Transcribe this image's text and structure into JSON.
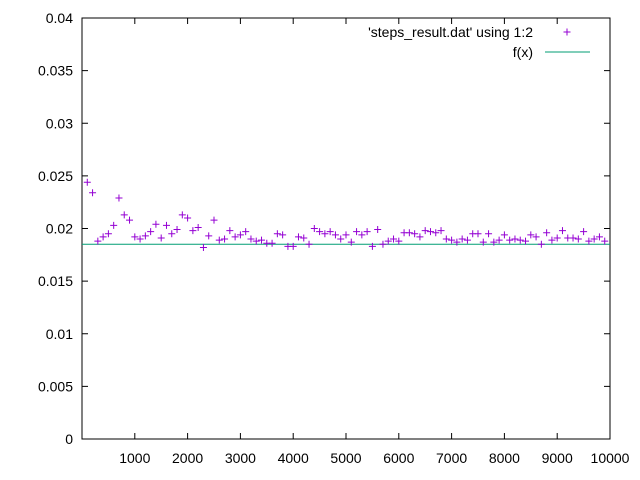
{
  "chart_data": {
    "type": "scatter",
    "title": "",
    "xlabel": "",
    "ylabel": "",
    "xlim": [
      0,
      10000
    ],
    "ylim": [
      0,
      0.04
    ],
    "grid": false,
    "legend_position": "top-right",
    "x_ticks": [
      {
        "value": 1000,
        "label": "1000"
      },
      {
        "value": 2000,
        "label": "2000"
      },
      {
        "value": 3000,
        "label": "3000"
      },
      {
        "value": 4000,
        "label": "4000"
      },
      {
        "value": 5000,
        "label": "5000"
      },
      {
        "value": 6000,
        "label": "6000"
      },
      {
        "value": 7000,
        "label": "7000"
      },
      {
        "value": 8000,
        "label": "8000"
      },
      {
        "value": 9000,
        "label": "9000"
      },
      {
        "value": 10000,
        "label": "10000"
      }
    ],
    "y_ticks": [
      {
        "value": 0,
        "label": "0"
      },
      {
        "value": 0.005,
        "label": "0.005"
      },
      {
        "value": 0.01,
        "label": "0.01"
      },
      {
        "value": 0.015,
        "label": "0.015"
      },
      {
        "value": 0.02,
        "label": "0.02"
      },
      {
        "value": 0.025,
        "label": "0.025"
      },
      {
        "value": 0.03,
        "label": "0.03"
      },
      {
        "value": 0.035,
        "label": "0.035"
      },
      {
        "value": 0.04,
        "label": "0.04"
      }
    ],
    "series": [
      {
        "name": "'steps_result.dat' using 1:2",
        "kind": "points",
        "marker": "plus",
        "color": "#9400d3",
        "x": [
          100,
          200,
          300,
          400,
          500,
          600,
          700,
          800,
          900,
          1000,
          1100,
          1200,
          1300,
          1400,
          1500,
          1600,
          1700,
          1800,
          1900,
          2000,
          2100,
          2200,
          2300,
          2400,
          2500,
          2600,
          2700,
          2800,
          2900,
          3000,
          3100,
          3200,
          3300,
          3400,
          3500,
          3600,
          3700,
          3800,
          3900,
          4000,
          4100,
          4200,
          4300,
          4400,
          4500,
          4600,
          4700,
          4800,
          4900,
          5000,
          5100,
          5200,
          5300,
          5400,
          5500,
          5600,
          5700,
          5800,
          5900,
          6000,
          6100,
          6200,
          6300,
          6400,
          6500,
          6600,
          6700,
          6800,
          6900,
          7000,
          7100,
          7200,
          7300,
          7400,
          7500,
          7600,
          7700,
          7800,
          7900,
          8000,
          8100,
          8200,
          8300,
          8400,
          8500,
          8600,
          8700,
          8800,
          8900,
          9000,
          9100,
          9200,
          9300,
          9400,
          9500,
          9600,
          9700,
          9800,
          9900
        ],
        "y": [
          0.0244,
          0.0234,
          0.0188,
          0.0192,
          0.0195,
          0.0203,
          0.0229,
          0.0213,
          0.0208,
          0.0192,
          0.019,
          0.0193,
          0.0197,
          0.0204,
          0.0191,
          0.0203,
          0.0195,
          0.0199,
          0.0213,
          0.021,
          0.0198,
          0.0201,
          0.0182,
          0.0193,
          0.0208,
          0.0189,
          0.019,
          0.0198,
          0.0192,
          0.0194,
          0.0197,
          0.019,
          0.0188,
          0.0189,
          0.0186,
          0.0186,
          0.0195,
          0.0194,
          0.0183,
          0.0183,
          0.0192,
          0.0191,
          0.0185,
          0.02,
          0.0197,
          0.0195,
          0.0197,
          0.0194,
          0.019,
          0.0194,
          0.0187,
          0.0197,
          0.0194,
          0.0197,
          0.0183,
          0.0199,
          0.0185,
          0.0188,
          0.019,
          0.0188,
          0.0196,
          0.0196,
          0.0195,
          0.0192,
          0.0198,
          0.0197,
          0.0196,
          0.0198,
          0.019,
          0.0189,
          0.0187,
          0.019,
          0.0189,
          0.0195,
          0.0195,
          0.0187,
          0.0195,
          0.0187,
          0.0189,
          0.0194,
          0.0189,
          0.019,
          0.0189,
          0.0188,
          0.0194,
          0.0192,
          0.0185,
          0.0196,
          0.0189,
          0.0191,
          0.0198,
          0.0191,
          0.0191,
          0.019,
          0.0197,
          0.0188,
          0.019,
          0.0192,
          0.0188
        ]
      },
      {
        "name": "f(x)",
        "kind": "line",
        "color": "#009e73",
        "x": [
          0,
          10000
        ],
        "y": [
          0.0185,
          0.0185
        ]
      }
    ]
  }
}
